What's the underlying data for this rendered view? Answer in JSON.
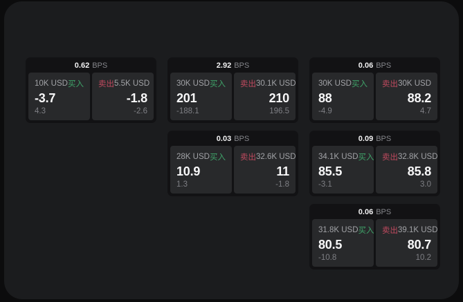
{
  "labels": {
    "bps_unit": "BPS",
    "buy": "买入",
    "sell": "卖出"
  },
  "colors": {
    "outer_background": "#0c0c0d",
    "surface_background": "#1b1c1e",
    "card_background": "#121214",
    "tile_background": "#28292b",
    "buy_green": "#3fa369",
    "sell_red": "#c04a5f",
    "text_primary": "#f7f7f8",
    "text_secondary": "#a2a3a7",
    "text_muted": "#7e7f84"
  },
  "cards": [
    {
      "bps": "0.62",
      "buy": {
        "amount": "10K USD",
        "value": "-3.7",
        "delta": "4.3"
      },
      "sell": {
        "amount": "5.5K USD",
        "value": "-1.8",
        "delta": "-2.6"
      }
    },
    {
      "bps": "2.92",
      "buy": {
        "amount": "30K USD",
        "value": "201",
        "delta": "-188.1"
      },
      "sell": {
        "amount": "30.1K USD",
        "value": "210",
        "delta": "196.5"
      }
    },
    {
      "bps": "0.06",
      "buy": {
        "amount": "30K USD",
        "value": "88",
        "delta": "-4.9"
      },
      "sell": {
        "amount": "30K USD",
        "value": "88.2",
        "delta": "4.7"
      }
    },
    {
      "bps": "0.03",
      "buy": {
        "amount": "28K USD",
        "value": "10.9",
        "delta": "1.3"
      },
      "sell": {
        "amount": "32.6K USD",
        "value": "11",
        "delta": "-1.8"
      }
    },
    {
      "bps": "0.09",
      "buy": {
        "amount": "34.1K USD",
        "value": "85.5",
        "delta": "-3.1"
      },
      "sell": {
        "amount": "32.8K USD",
        "value": "85.8",
        "delta": "3.0"
      }
    },
    {
      "bps": "0.06",
      "buy": {
        "amount": "31.8K USD",
        "value": "80.5",
        "delta": "-10.8"
      },
      "sell": {
        "amount": "39.1K USD",
        "value": "80.7",
        "delta": "10.2"
      }
    }
  ]
}
